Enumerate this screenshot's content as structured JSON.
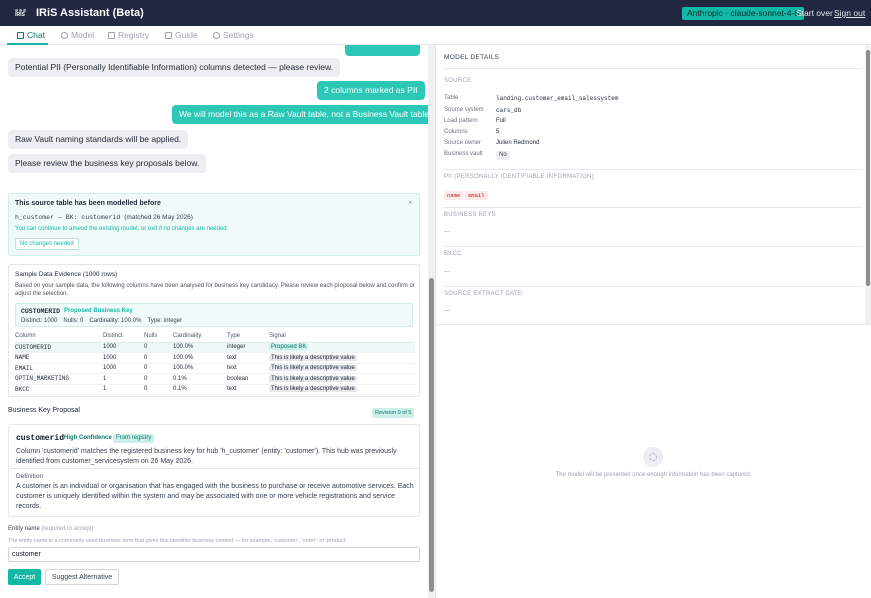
{
  "header": {
    "logo_text": "IRIS",
    "title": "IRiS Assistant (Beta)",
    "model_badge": "Anthropic · claude-sonnet-4-6",
    "start_over": "Start over",
    "sign_out": "Sign out"
  },
  "tabs": [
    {
      "label": "Chat",
      "icon": "chat-icon"
    },
    {
      "label": "Model",
      "icon": "model-icon"
    },
    {
      "label": "Registry",
      "icon": "registry-icon"
    },
    {
      "label": "Guide",
      "icon": "guide-icon"
    },
    {
      "label": "Settings",
      "icon": "gear-icon"
    }
  ],
  "chat": {
    "messages": [
      {
        "role": "bot",
        "text": "Potential PII (Personally Identifiable Information) columns detected — please review."
      },
      {
        "role": "user",
        "text": "2 columns marked as PII"
      },
      {
        "role": "user",
        "text": "We will model this as a Raw Vault table, not a Business Vault table."
      },
      {
        "role": "bot",
        "text": "Raw Vault naming standards will be applied."
      },
      {
        "role": "bot",
        "text": "Please review the business key proposals below."
      }
    ],
    "modelled_before": {
      "title": "This source table has been modelled before",
      "hub": "h_customer — BK: customerid",
      "matched": "(matched 26 May 2026)",
      "note": "You can continue to amend the existing model, or exit if no changes are needed.",
      "button": "No changes needed",
      "close": "×"
    },
    "evidence": {
      "title": "Sample Data Evidence (1000 rows)",
      "description": "Based on your sample data, the following columns have been analysed for business key candidacy. Please review each proposal below and confirm or adjust the selection.",
      "key_name": "CUSTOMERID",
      "key_tag": "Proposed Business Key",
      "key_stats": [
        "Distinct: 1000",
        "Nulls: 0",
        "Cardinality: 100.0%",
        "Type: integer"
      ],
      "columns": [
        "Column",
        "Distinct",
        "Nulls",
        "Cardinality",
        "Type",
        "Signal"
      ],
      "rows": [
        {
          "column": "CUSTOMERID",
          "distinct": "1000",
          "nulls": "0",
          "cardinality": "100.0%",
          "type": "integer",
          "signal": "Proposed BK"
        },
        {
          "column": "NAME",
          "distinct": "1000",
          "nulls": "0",
          "cardinality": "100.0%",
          "type": "text",
          "signal": "This is likely a descriptive value"
        },
        {
          "column": "EMAIL",
          "distinct": "1000",
          "nulls": "0",
          "cardinality": "100.0%",
          "type": "text",
          "signal": "This is likely a descriptive value"
        },
        {
          "column": "OPTIN_MARKETING",
          "distinct": "1",
          "nulls": "0",
          "cardinality": "0.1%",
          "type": "boolean",
          "signal": "This is likely a descriptive value"
        },
        {
          "column": "BKCC",
          "distinct": "1",
          "nulls": "0",
          "cardinality": "0.1%",
          "type": "text",
          "signal": "This is likely a descriptive value"
        }
      ]
    },
    "proposal": {
      "header": "Business Key Proposal",
      "revision": "Revision 0 of 5",
      "key": "customerid",
      "confidence": "High Confidence",
      "source": "From registry",
      "description": "Column 'customerid' matches the registered business key for hub 'h_customer' (entity: 'customer'). This hub was previously identified from customer_servicesystem on 26 May 2026.",
      "definition_label": "Definition",
      "definition": "A customer is an individual or organisation that has engaged with the business to purchase or receive automotive services. Each customer is uniquely identified within the system and may be associated with one or more vehicle registrations and service records."
    },
    "entity": {
      "label": "Entity name",
      "required": "(required to accept)",
      "help": "The entity name is a commonly used business term that gives this identifier business context — for example, 'customer', 'order', or 'product'.",
      "value": "customer",
      "accept": "Accept",
      "suggest": "Suggest Alternative"
    }
  },
  "details": {
    "header": "MODEL DETAILS",
    "source_section": "SOURCE",
    "fields": [
      {
        "label": "Table",
        "value": "landing.customer_email_salessystem",
        "mono": true
      },
      {
        "label": "Source system",
        "value": "cars_db",
        "mono": true
      },
      {
        "label": "Load pattern",
        "value": "Full",
        "mono": false
      },
      {
        "label": "Columns",
        "value": "5",
        "mono": false
      },
      {
        "label": "Source owner",
        "value": "Julien Redmond",
        "mono": false
      }
    ],
    "business_vault_label": "Business vault",
    "business_vault_value": "No",
    "pii_section": "PII (PERSONALLY IDENTIFIABLE INFORMATION)",
    "pii_tags": [
      "name",
      "email"
    ],
    "bk_section": "BUSINESS KEYS",
    "bkcc_section": "BKCC",
    "extract_section": "SOURCE EXTRACT DATE",
    "empty": "—",
    "waiting": "The model will be presented once enough information has been captured."
  }
}
